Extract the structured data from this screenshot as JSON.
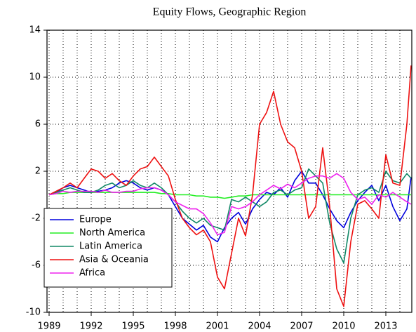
{
  "chart_data": {
    "type": "line",
    "title": "Equity Flows, Geographic Region",
    "x": [
      1989,
      1989.5,
      1990,
      1990.5,
      1991,
      1991.5,
      1992,
      1992.5,
      1993,
      1993.5,
      1994,
      1994.5,
      1995,
      1995.5,
      1996,
      1996.5,
      1997,
      1997.5,
      1998,
      1998.5,
      1999,
      1999.5,
      2000,
      2000.5,
      2001,
      2001.5,
      2002,
      2002.5,
      2003,
      2003.5,
      2004,
      2004.5,
      2005,
      2005.5,
      2006,
      2006.5,
      2007,
      2007.5,
      2008,
      2008.5,
      2009,
      2009.5,
      2010,
      2010.5,
      2011,
      2011.5,
      2012,
      2012.5,
      2013,
      2013.5,
      2014,
      2014.5,
      2014.8
    ],
    "series": [
      {
        "name": "Europe",
        "color": "#0000dd",
        "values": [
          0,
          0.2,
          0.6,
          0.8,
          0.6,
          0.4,
          0.2,
          0.3,
          0.4,
          0.6,
          1.0,
          1.2,
          1.0,
          0.6,
          0.4,
          0.6,
          0.4,
          0.0,
          -1.0,
          -2.0,
          -2.5,
          -3.0,
          -2.6,
          -3.6,
          -4.0,
          -2.8,
          -2.0,
          -1.5,
          -2.5,
          -1.2,
          -0.4,
          0.2,
          0.0,
          0.6,
          -0.2,
          1.2,
          2.0,
          1.0,
          1.0,
          0.0,
          -1.2,
          -2.2,
          -2.8,
          -1.5,
          -0.5,
          0.2,
          0.8,
          -0.5,
          0.8,
          -1.0,
          -2.2,
          -1.2,
          1.5
        ]
      },
      {
        "name": "North America",
        "color": "#22ee22",
        "values": [
          0,
          0.1,
          0.1,
          0.2,
          0.2,
          0.2,
          0.2,
          0.2,
          0.2,
          0.2,
          0.2,
          0.2,
          0.2,
          0.2,
          0.2,
          0.2,
          0.1,
          0.1,
          0.0,
          0.0,
          0.0,
          -0.1,
          -0.1,
          -0.2,
          -0.2,
          -0.3,
          -0.2,
          -0.1,
          -0.1,
          0.0,
          0,
          0,
          0,
          0,
          0,
          0,
          0,
          0,
          0,
          0,
          0,
          0,
          0,
          0,
          0,
          0,
          0,
          0,
          0,
          0,
          0,
          0,
          0
        ]
      },
      {
        "name": "Latin America",
        "color": "#118866",
        "values": [
          0,
          0.2,
          0.4,
          0.6,
          0.4,
          0.2,
          0.2,
          0.4,
          0.8,
          1.0,
          0.6,
          0.8,
          1.2,
          0.8,
          0.6,
          1.0,
          0.6,
          0.0,
          -0.6,
          -1.4,
          -2.0,
          -2.4,
          -2.0,
          -2.6,
          -2.8,
          -3.0,
          -0.4,
          -0.6,
          -0.2,
          -0.6,
          -1.0,
          -0.6,
          0.2,
          0.4,
          0.0,
          0.4,
          0.6,
          2.2,
          1.6,
          1.0,
          -2.4,
          -4.6,
          -5.8,
          -2.0,
          0.0,
          0.4,
          0.6,
          0.2,
          2.0,
          1.2,
          1.0,
          1.8,
          1.4
        ]
      },
      {
        "name": "Asia & Oceania",
        "color": "#ee1111",
        "values": [
          0,
          0.3,
          0.6,
          1.0,
          0.6,
          1.4,
          2.2,
          2.0,
          1.4,
          1.8,
          1.2,
          0.8,
          1.6,
          2.2,
          2.4,
          3.2,
          2.4,
          1.6,
          -0.4,
          -2.0,
          -2.8,
          -3.4,
          -3.0,
          -4.0,
          -7.0,
          -8.0,
          -5.0,
          -2.0,
          -3.5,
          0.0,
          6.0,
          7.0,
          8.8,
          6.0,
          4.5,
          4.0,
          2.0,
          -2.0,
          -1.0,
          4.0,
          -1.0,
          -8.0,
          -9.5,
          -4.0,
          -0.8,
          -0.5,
          -1.2,
          -2.0,
          3.4,
          1.0,
          0.8,
          6.0,
          11.0
        ]
      },
      {
        "name": "Africa",
        "color": "#ee22ee",
        "values": [
          0,
          0.1,
          0.3,
          0.2,
          0.3,
          0.3,
          0.3,
          0.2,
          0.4,
          0.2,
          0.2,
          0.3,
          0.3,
          0.5,
          0.6,
          0.6,
          0.4,
          0.0,
          -0.6,
          -0.9,
          -1.2,
          -1.2,
          -1.6,
          -2.4,
          -3.4,
          -3.2,
          -1.0,
          -1.2,
          -1.0,
          -0.6,
          0.0,
          0.4,
          0.8,
          0.5,
          0.9,
          0.6,
          1.0,
          1.4,
          1.6,
          1.6,
          1.4,
          1.8,
          1.4,
          0.2,
          -0.4,
          -0.2,
          -0.8,
          0.0,
          -0.2,
          0.2,
          -0.2,
          -0.6,
          -0.8
        ]
      }
    ],
    "xlim": [
      1988.85,
      2014.85
    ],
    "ylim": [
      -10,
      14
    ],
    "xticks": [
      1989,
      1992,
      1995,
      1998,
      2001,
      2004,
      2007,
      2010,
      2013
    ],
    "yticks": [
      -10,
      -6,
      -2,
      2,
      6,
      10,
      14
    ],
    "x_grid": [
      1989,
      1990,
      1991,
      1992,
      1993,
      1994,
      1995,
      1996,
      1997,
      1998,
      1999,
      2000,
      2001,
      2002,
      2003,
      2004,
      2005,
      2006,
      2007,
      2008,
      2009,
      2010,
      2011,
      2012,
      2013,
      2014
    ],
    "grid": true,
    "legend": "lower left"
  }
}
